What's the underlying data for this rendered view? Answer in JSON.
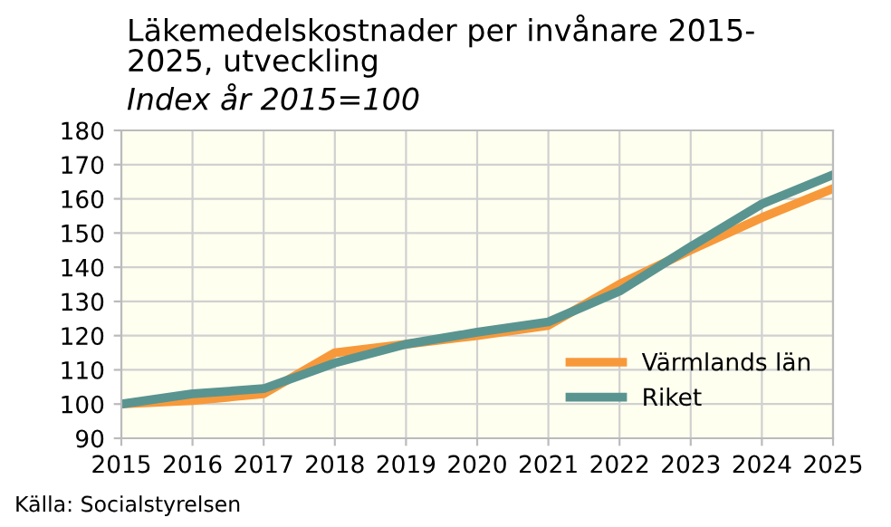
{
  "chart_data": {
    "type": "line",
    "title": "Läkemedelskostnader per invånare 2015-\n2025, utveckling",
    "subtitle": "Index år 2015=100",
    "x": [
      2015,
      2016,
      2017,
      2018,
      2019,
      2020,
      2021,
      2022,
      2023,
      2024,
      2025
    ],
    "series": [
      {
        "name": "Värmlands län",
        "color": "#f7993a",
        "values": [
          100,
          101,
          103,
          115,
          117.5,
          120,
          123,
          135,
          145,
          154.5,
          163
        ]
      },
      {
        "name": "Riket",
        "color": "#5a9490",
        "values": [
          100,
          103,
          104.5,
          112,
          117.5,
          121,
          124,
          133,
          146,
          158.5,
          167
        ]
      }
    ],
    "xlim": [
      2015,
      2025
    ],
    "xticks": [
      2015,
      2016,
      2017,
      2018,
      2019,
      2020,
      2021,
      2022,
      2023,
      2024,
      2025
    ],
    "ylim": [
      90,
      180
    ],
    "yticks": [
      90,
      100,
      110,
      120,
      130,
      140,
      150,
      160,
      170,
      180
    ],
    "grid": true,
    "legend": "bottom right",
    "marker": "none",
    "line_style": "solid",
    "annotations": [
      "Källa: Socialstyrelsen"
    ]
  }
}
